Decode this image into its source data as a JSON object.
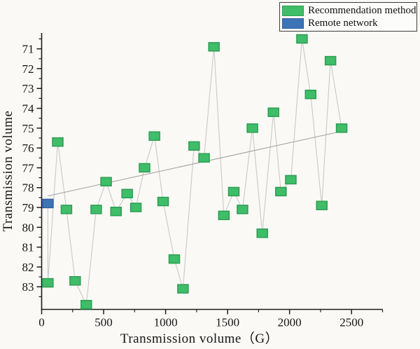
{
  "chart_data": {
    "type": "scatter",
    "title": "",
    "xlabel": "Transmission volume（G）",
    "ylabel": "Transmission volume",
    "background": "#faf9f6",
    "axis_color": "#1c1c1c",
    "grid": false,
    "y_inverted": true,
    "xlim": [
      0,
      2750
    ],
    "ylim": [
      70.2,
      84.14
    ],
    "x_ticks": [
      0,
      500,
      1000,
      1500,
      2000,
      2500
    ],
    "x_minor_ticks": [
      250,
      750,
      1250,
      1750,
      2250,
      2750
    ],
    "y_ticks": [
      71,
      72,
      73,
      74,
      75,
      76,
      77,
      78,
      79,
      80,
      81,
      82,
      83
    ],
    "y_minor_ticks": [
      70.5,
      71.5,
      72.5,
      73.5,
      74.5,
      75.5,
      76.5,
      77.5,
      78.5,
      79.5,
      80.5,
      81.5,
      82.5,
      83.5
    ],
    "legend": {
      "position": "top-right"
    },
    "connector_color": "#c9c9c9",
    "trend_line": {
      "x1": 50,
      "y1": 78.42,
      "x2": 2420,
      "y2": 75.16,
      "color": "#9f9f9f"
    },
    "series": [
      {
        "name": "Recommendation method",
        "marker": "square",
        "color": "#3fbd68",
        "border": "#2e9e52",
        "points": [
          [
            50,
            82.8
          ],
          [
            130,
            75.7
          ],
          [
            200,
            79.1
          ],
          [
            270,
            82.7
          ],
          [
            360,
            83.9
          ],
          [
            440,
            79.1
          ],
          [
            520,
            77.7
          ],
          [
            600,
            79.2
          ],
          [
            690,
            78.3
          ],
          [
            760,
            79.0
          ],
          [
            830,
            77.0
          ],
          [
            910,
            75.4
          ],
          [
            980,
            78.7
          ],
          [
            1070,
            81.6
          ],
          [
            1140,
            83.1
          ],
          [
            1230,
            75.9
          ],
          [
            1310,
            76.5
          ],
          [
            1390,
            70.9
          ],
          [
            1470,
            79.4
          ],
          [
            1550,
            78.2
          ],
          [
            1620,
            79.1
          ],
          [
            1700,
            75.0
          ],
          [
            1780,
            80.3
          ],
          [
            1870,
            74.2
          ],
          [
            1930,
            78.2
          ],
          [
            2010,
            77.6
          ],
          [
            2100,
            70.5
          ],
          [
            2170,
            73.3
          ],
          [
            2260,
            78.9
          ],
          [
            2330,
            71.6
          ],
          [
            2420,
            75.0
          ]
        ]
      },
      {
        "name": "Remote network",
        "marker": "square",
        "color": "#3d74b8",
        "border": "#2f5e9e",
        "points": [
          [
            50,
            78.8
          ]
        ]
      }
    ]
  }
}
